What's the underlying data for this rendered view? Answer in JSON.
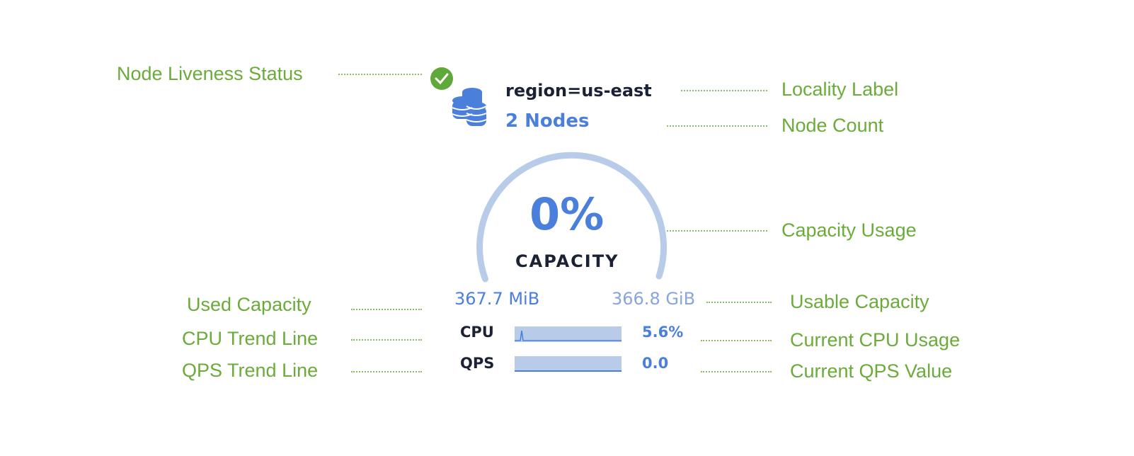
{
  "colors": {
    "annotation": "#6aab3a",
    "accent": "#4a7fdc",
    "dark": "#1c2235",
    "gauge": "#b8cbe8",
    "status_ok": "#5fa83a"
  },
  "node": {
    "locality": "region=us-east",
    "node_count": "2 Nodes",
    "status_icon": "check-circle-icon"
  },
  "capacity": {
    "percent": "0%",
    "percent_value": 0,
    "label": "CAPACITY",
    "used": "367.7 MiB",
    "usable": "366.8 GiB"
  },
  "metrics": [
    {
      "label": "CPU",
      "value": "5.6%"
    },
    {
      "label": "QPS",
      "value": "0.0"
    }
  ],
  "annotations": {
    "liveness": "Node Liveness Status",
    "locality": "Locality Label",
    "node_count": "Node Count",
    "capacity_usage": "Capacity Usage",
    "used_capacity": "Used Capacity",
    "usable_capacity": "Usable Capacity",
    "cpu_trend": "CPU Trend Line",
    "current_cpu": "Current CPU Usage",
    "qps_trend": "QPS Trend Line",
    "current_qps": "Current QPS Value"
  }
}
